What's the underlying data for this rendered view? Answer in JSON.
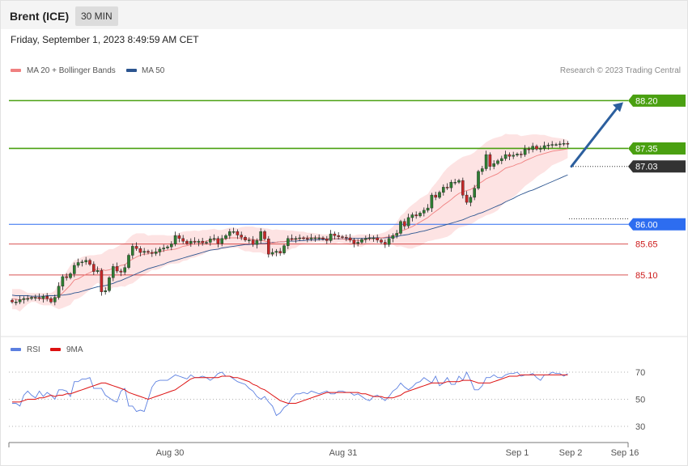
{
  "header": {
    "instrument": "Brent (ICE)",
    "timeframe": "30 MIN",
    "timestamp": "Friday, September 1, 2023 8:49:59 AM CET"
  },
  "legend": {
    "ma20": "MA 20 + Bollinger Bands",
    "ma50": "MA 50",
    "credit": "Research © 2023 Trading Central",
    "rsi": "RSI",
    "rsi_ma": "9MA"
  },
  "colors": {
    "resistance": "#4aa011",
    "last": "#333333",
    "pivot": "#2d6df0",
    "support": "#cc1a1a",
    "ma20": "#f08080",
    "ma50": "#2c5590",
    "band_fill": "#fde3e3",
    "up_candle": "#2e7d32",
    "down_candle": "#c62828",
    "rsi": "#5b7fe0",
    "rsi_ma": "#dd1111",
    "arrow": "#2c5f9e"
  },
  "chart_data": [
    {
      "type": "candlestick",
      "title": "Brent (ICE) 30 MIN",
      "x_labels": [
        "Aug 30",
        "Aug 31",
        "Sep 1",
        "Sep 2",
        "Sep 16"
      ],
      "ylim": [
        84.45,
        88.45
      ],
      "levels": [
        {
          "value": 88.2,
          "label": "88.20",
          "kind": "resistance"
        },
        {
          "value": 87.35,
          "label": "87.35",
          "kind": "resistance"
        },
        {
          "value": 87.03,
          "label": "87.03",
          "kind": "last"
        },
        {
          "value": 86.0,
          "label": "86.00",
          "kind": "pivot"
        },
        {
          "value": 85.65,
          "label": "85.65",
          "kind": "support"
        },
        {
          "value": 85.1,
          "label": "85.10",
          "kind": "support"
        }
      ],
      "close": [
        84.62,
        84.62,
        84.66,
        84.68,
        84.68,
        84.7,
        84.7,
        84.68,
        84.72,
        84.68,
        84.62,
        84.7,
        84.9,
        85.07,
        85.05,
        85.12,
        85.27,
        85.32,
        85.33,
        85.36,
        85.29,
        85.16,
        85.18,
        84.8,
        84.82,
        85.05,
        85.25,
        85.17,
        85.15,
        85.23,
        85.45,
        85.61,
        85.57,
        85.5,
        85.52,
        85.5,
        85.48,
        85.51,
        85.56,
        85.58,
        85.6,
        85.65,
        85.8,
        85.75,
        85.7,
        85.66,
        85.7,
        85.68,
        85.7,
        85.67,
        85.68,
        85.74,
        85.75,
        85.66,
        85.75,
        85.8,
        85.87,
        85.87,
        85.81,
        85.77,
        85.72,
        85.72,
        85.64,
        85.71,
        85.87,
        85.74,
        85.47,
        85.5,
        85.52,
        85.49,
        85.62,
        85.75,
        85.74,
        85.75,
        85.76,
        85.75,
        85.74,
        85.76,
        85.76,
        85.76,
        85.74,
        85.71,
        85.83,
        85.8,
        85.78,
        85.77,
        85.76,
        85.72,
        85.66,
        85.68,
        85.73,
        85.75,
        85.76,
        85.76,
        85.72,
        85.68,
        85.64,
        85.75,
        85.8,
        85.84,
        86.05,
        85.97,
        86.12,
        86.17,
        86.15,
        86.2,
        86.25,
        86.29,
        86.52,
        86.48,
        86.57,
        86.66,
        86.65,
        86.75,
        86.75,
        86.78,
        86.52,
        86.39,
        86.48,
        86.64,
        86.94,
        86.99,
        87.24,
        87.03,
        87.08,
        87.13,
        87.17,
        87.24,
        87.21,
        87.23,
        87.25,
        87.24,
        87.34,
        87.33,
        87.39,
        87.34,
        87.35,
        87.4,
        87.41,
        87.42,
        87.42,
        87.43,
        87.44,
        87.43
      ],
      "ma20": [
        84.67,
        84.67,
        84.65,
        84.67,
        84.68,
        84.7,
        84.7,
        84.68,
        84.67,
        84.67,
        84.67,
        84.67,
        84.72,
        84.78,
        84.85,
        84.92,
        85.01,
        85.03,
        85.07,
        85.11,
        85.14,
        85.18,
        85.21,
        85.2,
        85.18,
        85.19,
        85.22,
        85.24,
        85.27,
        85.28,
        85.34,
        85.38,
        85.42,
        85.45,
        85.47,
        85.47,
        85.5,
        85.5,
        85.51,
        85.53,
        85.54,
        85.55,
        85.56,
        85.58,
        85.61,
        85.62,
        85.64,
        85.65,
        85.66,
        85.68,
        85.7,
        85.72,
        85.73,
        85.72,
        85.73,
        85.74,
        85.76,
        85.76,
        85.76,
        85.75,
        85.74,
        85.74,
        85.73,
        85.72,
        85.72,
        85.7,
        85.69,
        85.67,
        85.68,
        85.69,
        85.69,
        85.71,
        85.73,
        85.73,
        85.75,
        85.76,
        85.76,
        85.76,
        85.76,
        85.76,
        85.75,
        85.74,
        85.75,
        85.74,
        85.75,
        85.74,
        85.73,
        85.72,
        85.72,
        85.71,
        85.71,
        85.73,
        85.74,
        85.74,
        85.75,
        85.76,
        85.77,
        85.78,
        85.8,
        85.82,
        85.88,
        85.9,
        85.93,
        85.96,
        86.0,
        86.04,
        86.08,
        86.12,
        86.18,
        86.23,
        86.28,
        86.34,
        86.39,
        86.44,
        86.5,
        86.55,
        86.58,
        86.6,
        86.62,
        86.66,
        86.72,
        86.76,
        86.81,
        86.84,
        86.87,
        86.9,
        86.95,
        87.0,
        87.02,
        87.04,
        87.07,
        87.09,
        87.13,
        87.16,
        87.19,
        87.22,
        87.24,
        87.26,
        87.28,
        87.3,
        87.31,
        87.32,
        87.33,
        87.34
      ],
      "bb_upper": [
        84.85,
        84.85,
        84.85,
        84.82,
        84.78,
        84.78,
        84.78,
        84.78,
        84.78,
        84.78,
        84.78,
        84.82,
        84.95,
        85.05,
        85.16,
        85.27,
        85.36,
        85.38,
        85.42,
        85.44,
        85.45,
        85.45,
        85.46,
        85.47,
        85.52,
        85.56,
        85.56,
        85.6,
        85.64,
        85.67,
        85.75,
        85.81,
        85.84,
        85.84,
        85.84,
        85.8,
        85.81,
        85.81,
        85.81,
        85.81,
        85.8,
        85.8,
        85.82,
        85.85,
        85.87,
        85.88,
        85.88,
        85.89,
        85.88,
        85.9,
        85.9,
        85.91,
        85.92,
        85.9,
        85.9,
        85.92,
        85.94,
        85.94,
        85.93,
        85.95,
        85.96,
        85.96,
        85.96,
        85.94,
        85.94,
        85.93,
        85.92,
        85.9,
        85.91,
        85.9,
        85.9,
        85.89,
        85.89,
        85.88,
        85.87,
        85.87,
        85.85,
        85.85,
        85.84,
        85.83,
        85.82,
        85.82,
        85.83,
        85.83,
        85.82,
        85.81,
        85.81,
        85.81,
        85.8,
        85.82,
        85.82,
        85.82,
        85.82,
        85.82,
        85.82,
        85.84,
        85.86,
        85.9,
        85.96,
        86.04,
        86.15,
        86.21,
        86.29,
        86.35,
        86.4,
        86.46,
        86.5,
        86.54,
        86.65,
        86.73,
        86.82,
        86.92,
        87.0,
        87.06,
        87.11,
        87.16,
        87.2,
        87.22,
        87.24,
        87.28,
        87.35,
        87.4,
        87.46,
        87.5,
        87.53,
        87.55,
        87.57,
        87.61,
        87.6,
        87.6,
        87.6,
        87.57,
        87.58,
        87.59,
        87.6,
        87.6,
        87.59,
        87.59,
        87.57,
        87.55,
        87.54,
        87.53,
        87.52,
        87.5
      ],
      "bb_lower": [
        84.49,
        84.49,
        84.45,
        84.52,
        84.58,
        84.62,
        84.62,
        84.58,
        84.56,
        84.56,
        84.56,
        84.52,
        84.49,
        84.51,
        84.54,
        84.57,
        84.66,
        84.68,
        84.72,
        84.78,
        84.83,
        84.91,
        84.96,
        84.93,
        84.84,
        84.82,
        84.88,
        84.88,
        84.9,
        84.89,
        84.93,
        84.95,
        85.0,
        85.06,
        85.1,
        85.14,
        85.19,
        85.19,
        85.21,
        85.25,
        85.28,
        85.3,
        85.3,
        85.31,
        85.35,
        85.36,
        85.4,
        85.41,
        85.44,
        85.46,
        85.5,
        85.53,
        85.54,
        85.54,
        85.56,
        85.56,
        85.58,
        85.58,
        85.59,
        85.55,
        85.52,
        85.52,
        85.5,
        85.5,
        85.5,
        85.47,
        85.46,
        85.44,
        85.45,
        85.48,
        85.48,
        85.53,
        85.57,
        85.58,
        85.63,
        85.65,
        85.67,
        85.67,
        85.68,
        85.69,
        85.68,
        85.66,
        85.67,
        85.65,
        85.68,
        85.67,
        85.65,
        85.63,
        85.64,
        85.6,
        85.6,
        85.64,
        85.66,
        85.66,
        85.68,
        85.68,
        85.68,
        85.66,
        85.64,
        85.6,
        85.61,
        85.59,
        85.57,
        85.57,
        85.6,
        85.62,
        85.66,
        85.7,
        85.71,
        85.73,
        85.74,
        85.76,
        85.78,
        85.82,
        85.89,
        85.94,
        85.96,
        85.98,
        86.0,
        86.04,
        86.09,
        86.12,
        86.16,
        86.18,
        86.21,
        86.25,
        86.33,
        86.39,
        86.44,
        86.48,
        86.54,
        86.61,
        86.68,
        86.73,
        86.78,
        86.84,
        86.89,
        86.93,
        86.99,
        87.05,
        87.08,
        87.11,
        87.14,
        87.18
      ],
      "ma50": [
        84.74,
        84.73,
        84.73,
        84.73,
        84.73,
        84.72,
        84.72,
        84.72,
        84.72,
        84.73,
        84.73,
        84.73,
        84.74,
        84.74,
        84.75,
        84.76,
        84.78,
        84.79,
        84.81,
        84.83,
        84.85,
        84.87,
        84.89,
        84.9,
        84.91,
        84.93,
        84.95,
        84.98,
        85.0,
        85.03,
        85.06,
        85.09,
        85.12,
        85.15,
        85.18,
        85.21,
        85.23,
        85.25,
        85.27,
        85.29,
        85.32,
        85.34,
        85.36,
        85.38,
        85.4,
        85.42,
        85.44,
        85.46,
        85.48,
        85.5,
        85.52,
        85.54,
        85.55,
        85.56,
        85.58,
        85.59,
        85.6,
        85.61,
        85.62,
        85.63,
        85.64,
        85.64,
        85.65,
        85.65,
        85.66,
        85.66,
        85.67,
        85.68,
        85.68,
        85.69,
        85.69,
        85.7,
        85.7,
        85.7,
        85.71,
        85.71,
        85.72,
        85.72,
        85.72,
        85.73,
        85.73,
        85.73,
        85.74,
        85.74,
        85.74,
        85.74,
        85.74,
        85.75,
        85.75,
        85.75,
        85.75,
        85.75,
        85.76,
        85.76,
        85.76,
        85.76,
        85.76,
        85.77,
        85.77,
        85.78,
        85.8,
        85.81,
        85.82,
        85.84,
        85.85,
        85.87,
        85.88,
        85.9,
        85.92,
        85.94,
        85.96,
        85.98,
        86.0,
        86.02,
        86.04,
        86.06,
        86.08,
        86.11,
        86.14,
        86.16,
        86.19,
        86.21,
        86.24,
        86.27,
        86.3,
        86.33,
        86.36,
        86.4,
        86.43,
        86.46,
        86.5,
        86.53,
        86.56,
        86.59,
        86.61,
        86.64,
        86.67,
        86.7,
        86.73,
        86.76,
        86.79,
        86.82,
        86.85,
        86.88
      ],
      "projection": {
        "from": 87.03,
        "to": 88.2
      }
    },
    {
      "type": "line",
      "title": "RSI",
      "ylim": [
        20,
        80
      ],
      "y_ticks": [
        30,
        50,
        70
      ],
      "series": [
        {
          "name": "RSI",
          "values": [
            47,
            47,
            45,
            53,
            56,
            53,
            51,
            56,
            52,
            55,
            53,
            50,
            57,
            57,
            56,
            52,
            63,
            63,
            65,
            65,
            66,
            58,
            58,
            58,
            53,
            51,
            49,
            48,
            56,
            58,
            45,
            45,
            41,
            42,
            41,
            50,
            59,
            63,
            64,
            64,
            64,
            66,
            68,
            67,
            66,
            65,
            68,
            66,
            66,
            67,
            66,
            64,
            66,
            69,
            70,
            67,
            67,
            65,
            63,
            62,
            61,
            58,
            56,
            52,
            50,
            52,
            48,
            45,
            38,
            40,
            44,
            46,
            51,
            54,
            54,
            55,
            54,
            56,
            55,
            54,
            55,
            56,
            54,
            54,
            56,
            56,
            55,
            55,
            53,
            54,
            52,
            50,
            49,
            52,
            53,
            51,
            49,
            52,
            56,
            58,
            62,
            59,
            57,
            59,
            62,
            63,
            66,
            64,
            62,
            67,
            60,
            62,
            66,
            61,
            61,
            67,
            64,
            70,
            64,
            57,
            57,
            60,
            66,
            66,
            68,
            66,
            66,
            68,
            69,
            69,
            70,
            67,
            68,
            68,
            69,
            66,
            64,
            68,
            68,
            70,
            69,
            69,
            67,
            69
          ]
        },
        {
          "name": "9MA",
          "values": [
            48,
            48,
            48,
            49,
            50,
            50,
            50,
            51,
            51,
            52,
            53,
            52,
            53,
            53,
            54,
            54,
            55,
            56,
            57,
            58,
            59,
            60,
            61,
            62,
            62,
            61,
            60,
            59,
            58,
            57,
            55,
            54,
            53,
            52,
            51,
            50,
            51,
            52,
            53,
            54,
            55,
            56,
            57,
            59,
            61,
            63,
            65,
            66,
            66,
            66,
            66,
            66,
            66,
            66,
            67,
            67,
            67,
            66,
            66,
            65,
            64,
            63,
            61,
            60,
            58,
            57,
            55,
            53,
            51,
            49,
            48,
            47,
            47,
            47,
            48,
            49,
            50,
            51,
            52,
            53,
            54,
            55,
            55,
            55,
            55,
            55,
            55,
            55,
            55,
            55,
            54,
            54,
            53,
            52,
            52,
            52,
            51,
            51,
            51,
            52,
            53,
            55,
            56,
            57,
            58,
            59,
            60,
            61,
            62,
            62,
            62,
            62,
            63,
            63,
            63,
            63,
            64,
            64,
            64,
            63,
            62,
            62,
            62,
            62,
            63,
            64,
            65,
            66,
            67,
            67,
            67,
            68,
            68,
            68,
            68,
            68,
            68,
            68,
            68,
            68,
            68,
            68,
            68,
            68
          ]
        }
      ]
    }
  ]
}
